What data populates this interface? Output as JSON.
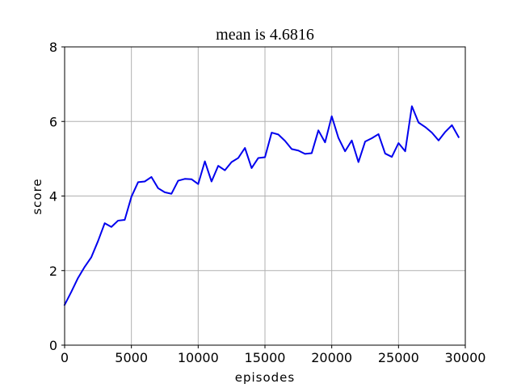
{
  "chart_data": {
    "type": "line",
    "title": "mean is 4.6816",
    "xlabel": "episodes",
    "ylabel": "score",
    "xlim": [
      0,
      30000
    ],
    "ylim": [
      0,
      8
    ],
    "grid": true,
    "x_ticks": [
      0,
      5000,
      10000,
      15000,
      20000,
      25000,
      30000
    ],
    "y_ticks": [
      0,
      2,
      4,
      6,
      8
    ],
    "series": [
      {
        "color": "#0000ee",
        "x": [
          0,
          500,
          1000,
          1500,
          2000,
          2500,
          3000,
          3500,
          4000,
          4500,
          5000,
          5500,
          6000,
          6500,
          7000,
          7500,
          8000,
          8500,
          9000,
          9500,
          10000,
          10500,
          11000,
          11500,
          12000,
          12500,
          13000,
          13500,
          14000,
          14500,
          15000,
          15500,
          16000,
          16500,
          17000,
          17500,
          18000,
          18500,
          19000,
          19500,
          20000,
          20500,
          21000,
          21500,
          22000,
          22500,
          23000,
          23500,
          24000,
          24500,
          25000,
          25500,
          26000,
          26500,
          27000,
          27500,
          28000,
          28500,
          29000,
          29500
        ],
        "y": [
          1.08,
          1.43,
          1.8,
          2.1,
          2.36,
          2.79,
          3.27,
          3.17,
          3.34,
          3.36,
          3.98,
          4.37,
          4.39,
          4.51,
          4.21,
          4.1,
          4.06,
          4.41,
          4.46,
          4.45,
          4.32,
          4.93,
          4.39,
          4.81,
          4.69,
          4.91,
          5.02,
          5.29,
          4.75,
          5.02,
          5.04,
          5.7,
          5.65,
          5.48,
          5.26,
          5.22,
          5.13,
          5.15,
          5.76,
          5.44,
          6.14,
          5.56,
          5.2,
          5.49,
          4.91,
          5.46,
          5.55,
          5.66,
          5.14,
          5.05,
          5.42,
          5.2,
          6.41,
          5.97,
          5.85,
          5.7,
          5.49,
          5.72,
          5.9,
          5.58
        ]
      }
    ]
  }
}
